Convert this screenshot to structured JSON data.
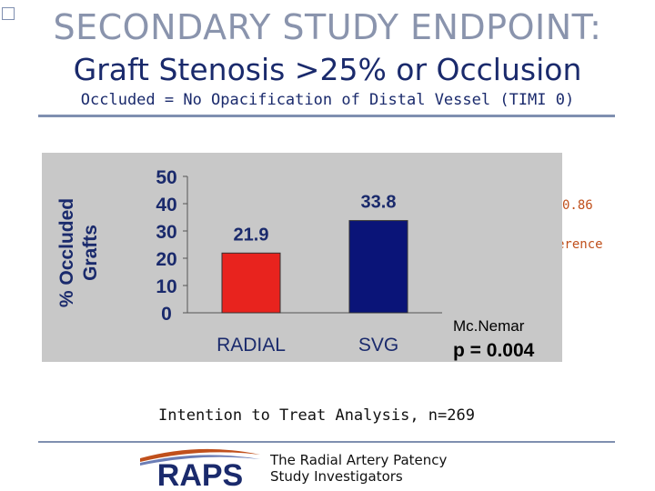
{
  "header": {
    "title": "SECONDARY STUDY ENDPOINT:",
    "subtitle": "Graft Stenosis >25% or Occlusion",
    "definition": "Occluded = No Opacification of Distal Vessel (TIMI 0)"
  },
  "side_notes": {
    "value_fragment": "0.86",
    "word_fragment": "erence"
  },
  "chart_data": {
    "type": "bar",
    "categories": [
      "RADIAL",
      "SVG"
    ],
    "values": [
      21.9,
      33.8
    ],
    "data_labels": [
      "21.9",
      "33.8"
    ],
    "title": "",
    "xlabel": "",
    "ylabel": "% Occluded Grafts",
    "ylim": [
      0,
      50
    ],
    "yticks": [
      "0",
      "10",
      "20",
      "30",
      "40",
      "50"
    ],
    "grid": false,
    "bar_colors": [
      "#e8231e",
      "#0a1478"
    ],
    "annotation": {
      "test": "Mc.Nemar",
      "pvalue": "p = 0.004"
    }
  },
  "footer": {
    "analysis": "Intention to Treat Analysis, n=269",
    "logo_text": "RAPS",
    "credits_line1": "The Radial Artery Patency",
    "credits_line2": "Study Investigators"
  },
  "colors": {
    "title": "#8a94ad",
    "subtitle": "#1a2a6c",
    "panel": "#c8c8c8",
    "label_blue": "#1a2a6c"
  }
}
